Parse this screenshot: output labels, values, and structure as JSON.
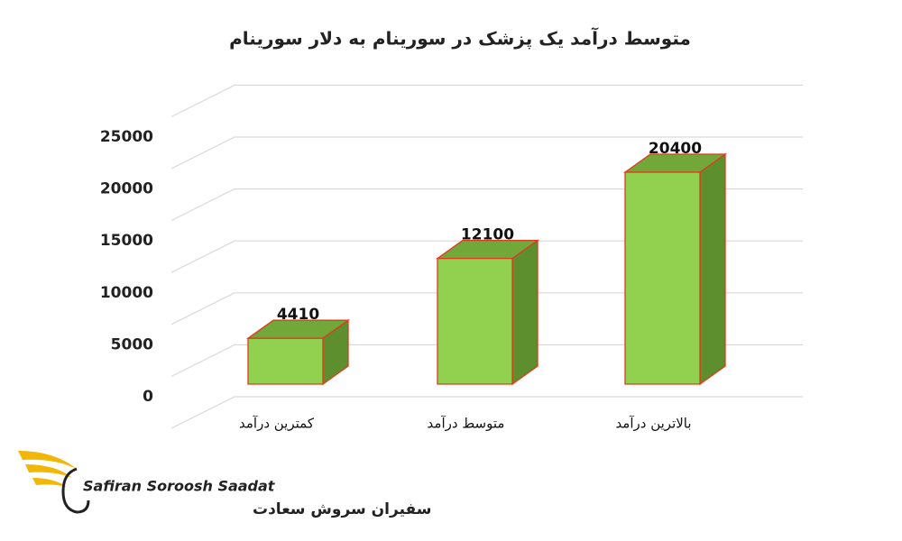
{
  "chart_data": {
    "type": "bar3d",
    "title": "متوسط درآمد یک پزشک در سورینام به دلار سورینام",
    "categories": [
      "کمترین درآمد",
      "متوسط درآمد",
      "بالاترین درآمد"
    ],
    "values": [
      4410,
      12100,
      20400
    ],
    "color": "#92d050",
    "ylim": [
      0,
      30000
    ],
    "yticks": [
      0,
      5000,
      10000,
      15000,
      20000,
      25000
    ],
    "grid": true
  },
  "logo": {
    "latin": "Safiran Soroosh Saadat",
    "persian": "سفیران سروش سعادت"
  }
}
